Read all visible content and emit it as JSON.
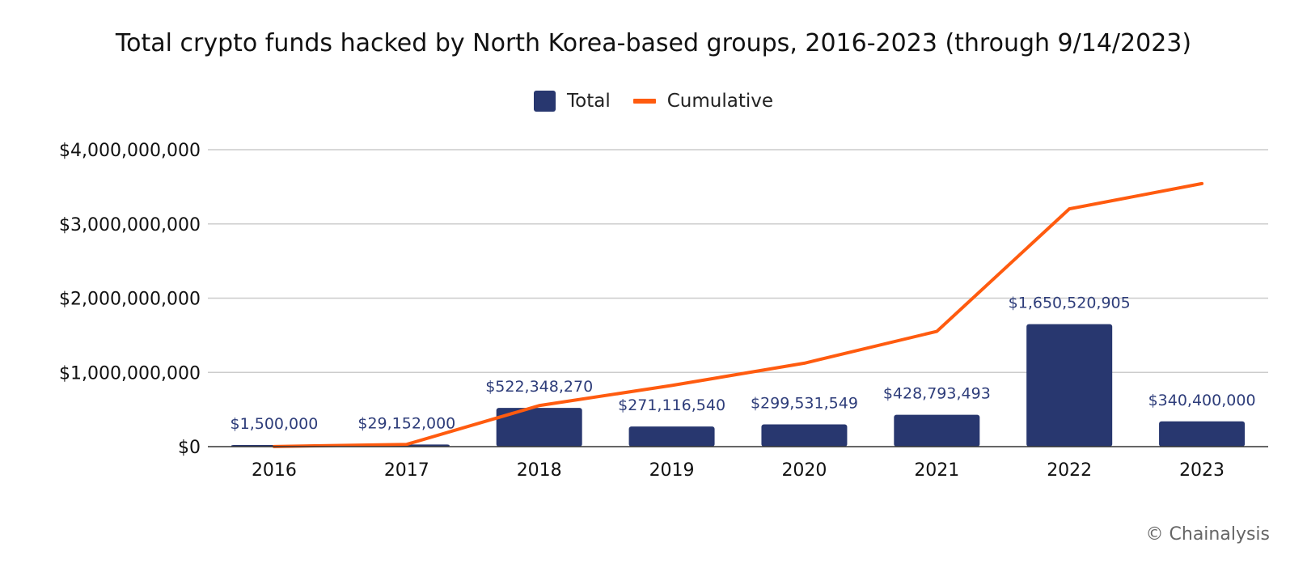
{
  "chart_data": {
    "type": "bar",
    "title": "Total crypto funds hacked by North Korea-based groups, 2016-2023 (through 9/14/2023)",
    "categories": [
      "2016",
      "2017",
      "2018",
      "2019",
      "2020",
      "2021",
      "2022",
      "2023"
    ],
    "series": [
      {
        "name": "Total",
        "type": "bar",
        "color": "#28376f",
        "values": [
          1500000,
          29152000,
          522348270,
          271116540,
          299531549,
          428793493,
          1650520905,
          340400000
        ],
        "labels": [
          "$1,500,000",
          "$29,152,000",
          "$522,348,270",
          "$271,116,540",
          "$299,531,549",
          "$428,793,493",
          "$1,650,520,905",
          "$340,400,000"
        ]
      },
      {
        "name": "Cumulative",
        "type": "line",
        "color": "#ff5b0f",
        "values": [
          1500000,
          30652000,
          553000270,
          824116810,
          1123648359,
          1552441852,
          3202962757,
          3543362757
        ]
      }
    ],
    "ylim": [
      0,
      4000000000
    ],
    "yticks": [
      0,
      1000000000,
      2000000000,
      3000000000,
      4000000000
    ],
    "ytick_labels": [
      "$0",
      "$1,000,000,000",
      "$2,000,000,000",
      "$3,000,000,000",
      "$4,000,000,000"
    ],
    "grid": true,
    "legend_position": "top-center"
  },
  "credit": "© Chainalysis"
}
